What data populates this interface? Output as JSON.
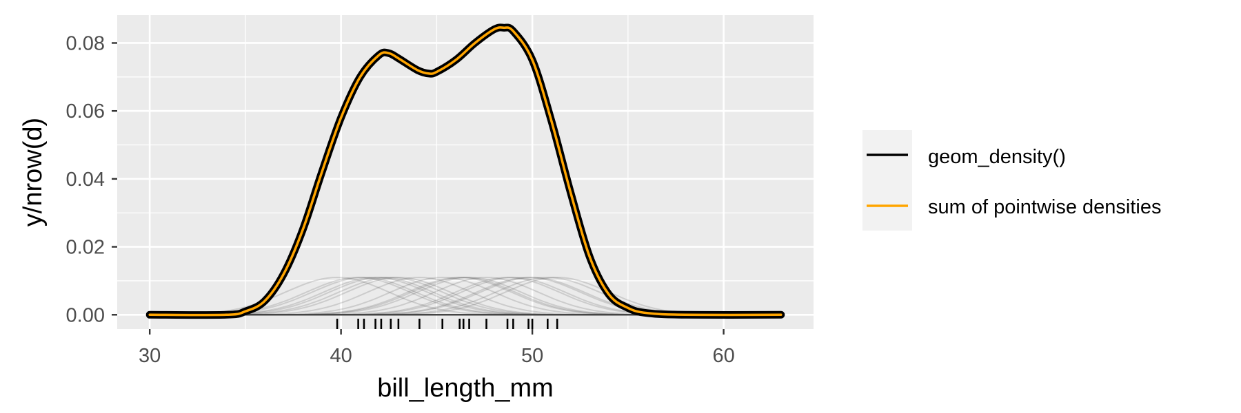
{
  "chart_data": {
    "type": "line",
    "title": "",
    "xlabel": "bill_length_mm",
    "ylabel": "y/nrow(d)",
    "xlim": [
      28.3,
      64.7
    ],
    "ylim": [
      -0.0042,
      0.0882
    ],
    "x_ticks": [
      30,
      40,
      50,
      60
    ],
    "y_ticks": [
      0.0,
      0.02,
      0.04,
      0.06,
      0.08
    ],
    "x_tick_labels": [
      "30",
      "40",
      "50",
      "60"
    ],
    "y_tick_labels": [
      "0.00",
      "0.02",
      "0.04",
      "0.06",
      "0.08"
    ],
    "grid": true,
    "legend_position": "right",
    "series": [
      {
        "name": "geom_density()",
        "color": "#000000",
        "x": [
          30,
          34,
          35,
          36,
          37,
          38,
          39,
          40,
          41,
          42,
          42.5,
          43,
          44,
          44.6,
          45,
          46,
          47,
          48,
          48.5,
          49,
          50,
          51,
          52,
          53,
          54,
          55,
          56,
          58,
          63
        ],
        "y": [
          0.0,
          0.0,
          0.001,
          0.004,
          0.012,
          0.025,
          0.042,
          0.058,
          0.07,
          0.0765,
          0.077,
          0.0755,
          0.072,
          0.071,
          0.0715,
          0.075,
          0.08,
          0.084,
          0.0845,
          0.0835,
          0.075,
          0.057,
          0.036,
          0.017,
          0.006,
          0.002,
          0.0005,
          0.0,
          0.0
        ]
      },
      {
        "name": "sum of pointwise densities",
        "color": "#FFA500",
        "x": [
          30,
          34,
          35,
          36,
          37,
          38,
          39,
          40,
          41,
          42,
          42.5,
          43,
          44,
          44.6,
          45,
          46,
          47,
          48,
          48.5,
          49,
          50,
          51,
          52,
          53,
          54,
          55,
          56,
          58,
          63
        ],
        "y": [
          0.0,
          0.0,
          0.001,
          0.004,
          0.012,
          0.025,
          0.042,
          0.058,
          0.07,
          0.0765,
          0.077,
          0.0755,
          0.072,
          0.071,
          0.0715,
          0.075,
          0.08,
          0.084,
          0.0845,
          0.0835,
          0.075,
          0.057,
          0.036,
          0.017,
          0.006,
          0.002,
          0.0005,
          0.0,
          0.0
        ]
      }
    ],
    "pointwise_density_peak": 0.011,
    "rug_x": [
      39.8,
      40.9,
      41.2,
      41.8,
      42.1,
      42.6,
      43.0,
      44.1,
      45.3,
      46.2,
      46.4,
      46.7,
      47.6,
      48.7,
      49.0,
      49.8,
      50.0,
      50.8,
      51.3
    ]
  }
}
